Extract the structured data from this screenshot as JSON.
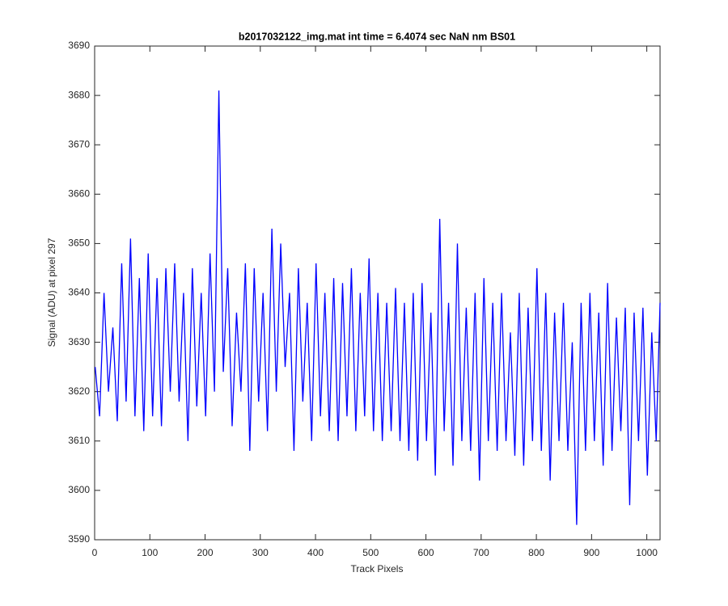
{
  "chart_data": {
    "type": "line",
    "title": "b2017032122_img.mat int time = 6.4074 sec  NaN nm BS01",
    "xlabel": "Track Pixels",
    "ylabel": "Signal (ADU) at pixel 297",
    "x": [
      1,
      9,
      17,
      25,
      33,
      41,
      49,
      57,
      65,
      73,
      81,
      89,
      97,
      105,
      113,
      121,
      129,
      137,
      145,
      153,
      161,
      169,
      177,
      185,
      193,
      201,
      209,
      217,
      225,
      233,
      241,
      249,
      257,
      265,
      273,
      281,
      289,
      297,
      305,
      313,
      321,
      329,
      337,
      345,
      353,
      361,
      369,
      377,
      385,
      393,
      401,
      409,
      417,
      425,
      433,
      441,
      449,
      457,
      465,
      473,
      481,
      489,
      497,
      505,
      513,
      521,
      529,
      537,
      545,
      553,
      561,
      569,
      577,
      585,
      593,
      601,
      609,
      617,
      625,
      633,
      641,
      649,
      657,
      665,
      673,
      681,
      689,
      697,
      705,
      713,
      721,
      729,
      737,
      745,
      753,
      761,
      769,
      777,
      785,
      793,
      801,
      809,
      817,
      825,
      833,
      841,
      849,
      857,
      865,
      873,
      881,
      889,
      897,
      905,
      913,
      921,
      929,
      937,
      945,
      953,
      961,
      969,
      977,
      985,
      993,
      1001,
      1009,
      1017,
      1024
    ],
    "series": [
      {
        "name": "signal",
        "color": "#0000ff",
        "values": [
          3625,
          3615,
          3640,
          3620,
          3633,
          3614,
          3646,
          3618,
          3651,
          3615,
          3643,
          3612,
          3648,
          3615,
          3643,
          3613,
          3645,
          3620,
          3646,
          3618,
          3640,
          3610,
          3645,
          3617,
          3640,
          3615,
          3648,
          3620,
          3681,
          3624,
          3645,
          3613,
          3636,
          3620,
          3646,
          3608,
          3645,
          3618,
          3640,
          3612,
          3653,
          3620,
          3650,
          3625,
          3640,
          3608,
          3645,
          3618,
          3638,
          3610,
          3646,
          3615,
          3640,
          3612,
          3643,
          3610,
          3642,
          3615,
          3645,
          3612,
          3640,
          3615,
          3647,
          3612,
          3640,
          3610,
          3638,
          3612,
          3641,
          3610,
          3638,
          3608,
          3640,
          3606,
          3642,
          3610,
          3636,
          3603,
          3655,
          3612,
          3638,
          3605,
          3650,
          3610,
          3637,
          3608,
          3640,
          3602,
          3643,
          3610,
          3638,
          3608,
          3640,
          3610,
          3632,
          3607,
          3640,
          3605,
          3637,
          3610,
          3645,
          3608,
          3640,
          3602,
          3636,
          3610,
          3638,
          3608,
          3630,
          3593,
          3638,
          3608,
          3640,
          3610,
          3636,
          3605,
          3642,
          3608,
          3635,
          3612,
          3637,
          3597,
          3636,
          3610,
          3637,
          3603,
          3632,
          3610,
          3638
        ]
      }
    ],
    "xlim": [
      0,
      1024
    ],
    "ylim": [
      3590,
      3690
    ],
    "xticks": [
      0,
      100,
      200,
      300,
      400,
      500,
      600,
      700,
      800,
      900,
      1000
    ],
    "yticks": [
      3590,
      3600,
      3610,
      3620,
      3630,
      3640,
      3650,
      3660,
      3670,
      3680,
      3690
    ]
  }
}
